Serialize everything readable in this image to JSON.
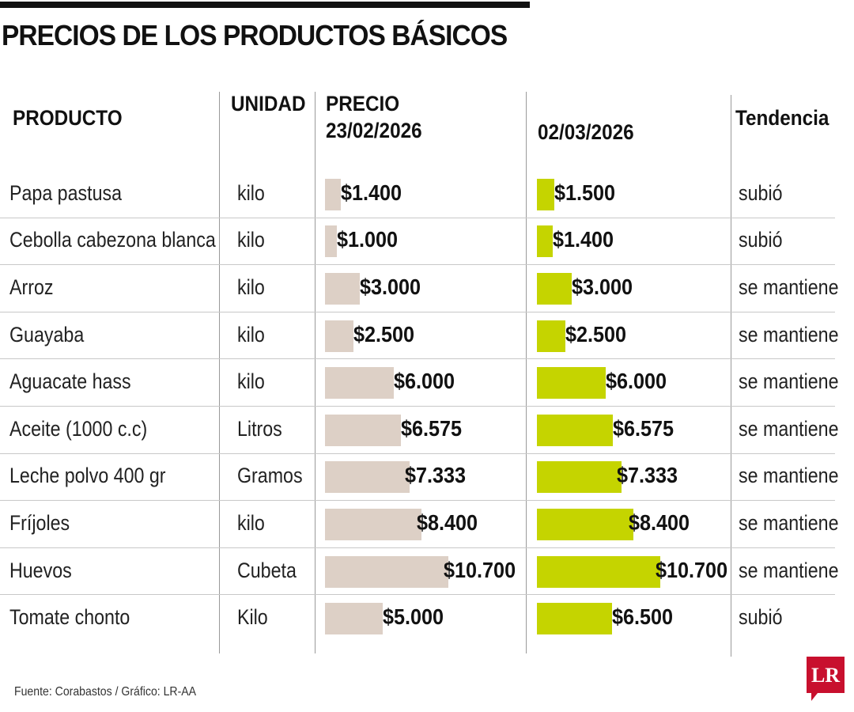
{
  "title": "PRECIOS DE LOS PRODUCTOS BÁSICOS",
  "headers": {
    "producto": "PRODUCTO",
    "unidad": "UNIDAD",
    "precio_label": "PRECIO",
    "date1": "23/02/2026",
    "date2": "02/03/2026",
    "tendencia": "Tendencia"
  },
  "rows": [
    {
      "producto": "Papa pastusa",
      "unidad": "kilo",
      "old_label": "$1.400",
      "new_label": "$1.500",
      "tendencia": "subió"
    },
    {
      "producto": "Cebolla cabezona blanca",
      "unidad": "kilo",
      "old_label": "$1.000",
      "new_label": "$1.400",
      "tendencia": "subió"
    },
    {
      "producto": "Arroz",
      "unidad": "kilo",
      "old_label": "$3.000",
      "new_label": "$3.000",
      "tendencia": "se mantiene"
    },
    {
      "producto": "Guayaba",
      "unidad": "kilo",
      "old_label": "$2.500",
      "new_label": "$2.500",
      "tendencia": "se mantiene"
    },
    {
      "producto": "Aguacate hass",
      "unidad": "kilo",
      "old_label": "$6.000",
      "new_label": "$6.000",
      "tendencia": "se mantiene"
    },
    {
      "producto": "Aceite (1000 c.c)",
      "unidad": "Litros",
      "old_label": "$6.575",
      "new_label": "$6.575",
      "tendencia": "se mantiene"
    },
    {
      "producto": "Leche polvo 400 gr",
      "unidad": "Gramos",
      "old_label": "$7.333",
      "new_label": "$7.333",
      "tendencia": "se mantiene"
    },
    {
      "producto": "Fríjoles",
      "unidad": "kilo",
      "old_label": "$8.400",
      "new_label": "$8.400",
      "tendencia": "se mantiene"
    },
    {
      "producto": "Huevos",
      "unidad": "Cubeta",
      "old_label": "$10.700",
      "new_label": "$10.700",
      "tendencia": "se mantiene"
    },
    {
      "producto": "Tomate chonto",
      "unidad": "Kilo",
      "old_label": "$5.000",
      "new_label": "$6.500",
      "tendencia": "subió"
    }
  ],
  "chart_data": {
    "type": "bar",
    "categories": [
      "Papa pastusa",
      "Cebolla cabezona blanca",
      "Arroz",
      "Guayaba",
      "Aguacate hass",
      "Aceite (1000 c.c)",
      "Leche polvo 400 gr",
      "Fríjoles",
      "Huevos",
      "Tomate chonto"
    ],
    "series": [
      {
        "name": "23/02/2026",
        "values": [
          1400,
          1000,
          3000,
          2500,
          6000,
          6575,
          7333,
          8400,
          10700,
          5000
        ],
        "color": "#ddd0c6"
      },
      {
        "name": "02/03/2026",
        "values": [
          1500,
          1400,
          3000,
          2500,
          6000,
          6575,
          7333,
          8400,
          10700,
          6500
        ],
        "color": "#c5d400"
      }
    ],
    "orientation": "horizontal"
  },
  "footer": {
    "source": "Fuente: Corabastos / Gráfico: LR-AA"
  },
  "logo": {
    "text": "LR",
    "color": "#c8102e"
  }
}
